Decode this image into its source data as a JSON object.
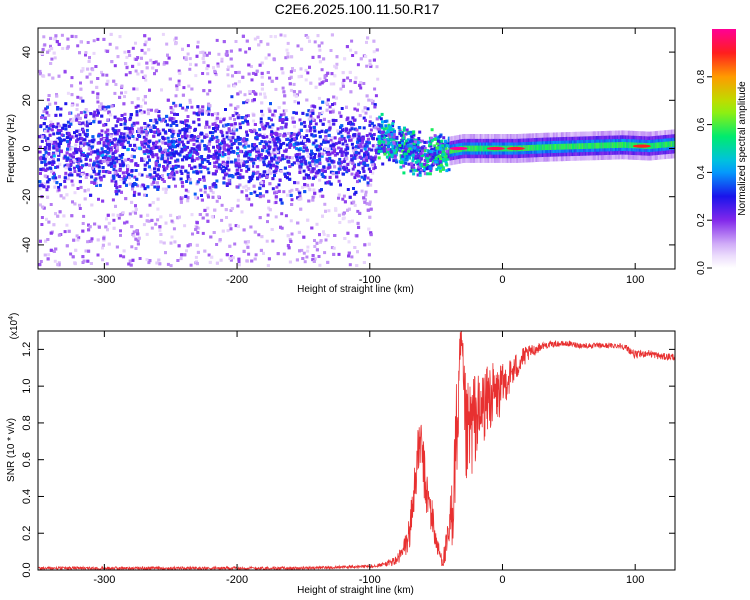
{
  "title": "C2E6.2025.100.11.50.R17",
  "chart_data": [
    {
      "type": "heatmap",
      "xlabel": "Height of straight line (km)",
      "ylabel": "Frequency (Hz)",
      "xlim": [
        -350,
        130
      ],
      "ylim": [
        -50,
        50
      ],
      "x_ticks": [
        -300,
        -200,
        -100,
        0,
        100
      ],
      "y_ticks": [
        -40,
        -20,
        0,
        20,
        40
      ],
      "colorbar": {
        "label": "Normalized spectral amplitude",
        "range": [
          0.0,
          1.0
        ],
        "ticks": [
          0.0,
          0.2,
          0.4,
          0.6,
          0.8
        ]
      },
      "regions": [
        {
          "x_range": [
            -350,
            -95
          ],
          "description_level": 0.15,
          "spread_hz": 48,
          "core_hz": 10
        },
        {
          "x_range": [
            -95,
            -40
          ],
          "description_level": 0.45,
          "spread_hz": 10,
          "core_hz": 5
        },
        {
          "x_range": [
            -40,
            130
          ],
          "description_level": 0.55,
          "spread_hz": 2,
          "core_hz": 2
        }
      ],
      "ridge": [
        {
          "x": -90,
          "y": 4
        },
        {
          "x": -80,
          "y": 2
        },
        {
          "x": -70,
          "y": 1
        },
        {
          "x": -60,
          "y": -4
        },
        {
          "x": -50,
          "y": -1
        },
        {
          "x": -40,
          "y": -1
        },
        {
          "x": -30,
          "y": 0
        },
        {
          "x": -10,
          "y": 0
        },
        {
          "x": 0,
          "y": 0
        },
        {
          "x": 10,
          "y": 0
        },
        {
          "x": 30,
          "y": 0.5
        },
        {
          "x": 60,
          "y": 1
        },
        {
          "x": 90,
          "y": 1.5
        },
        {
          "x": 110,
          "y": 1
        },
        {
          "x": 130,
          "y": 2
        }
      ],
      "peaks": [
        {
          "x": -33,
          "y": 0,
          "value": 1.0
        },
        {
          "x": -5,
          "y": 0,
          "value": 0.95
        },
        {
          "x": 10,
          "y": 0,
          "value": 0.92
        },
        {
          "x": 105,
          "y": 1,
          "value": 0.9
        }
      ]
    },
    {
      "type": "line",
      "xlabel": "Height of straight line (km)",
      "ylabel": "SNR (10 * v/v)",
      "y_multiplier": "(x10",
      "y_multiplier_exp": "4",
      "y_multiplier_close": ")",
      "xlim": [
        -350,
        130
      ],
      "ylim": [
        0.0,
        1.3
      ],
      "x_ticks": [
        -300,
        -200,
        -100,
        0,
        100
      ],
      "y_ticks": [
        "0.0",
        "0.2",
        "0.4",
        "0.6",
        "0.8",
        "1.0",
        "1.2"
      ],
      "color": "#e83030",
      "series": [
        {
          "x": [
            -350,
            -300,
            -250,
            -200,
            -150,
            -100,
            -90,
            -80,
            -75,
            -70,
            -67,
            -65,
            -62,
            -60,
            -58,
            -55,
            -52,
            -50,
            -47,
            -45,
            -42,
            -40,
            -37,
            -35,
            -33,
            -31,
            -29,
            -27,
            -25,
            -22,
            -20,
            -17,
            -15,
            -12,
            -10,
            -7,
            -5,
            -2,
            0,
            5,
            10,
            15,
            20,
            25,
            30,
            40,
            50,
            60,
            70,
            80,
            90,
            95,
            100,
            110,
            120,
            130
          ],
          "y": [
            0.01,
            0.01,
            0.01,
            0.01,
            0.01,
            0.02,
            0.03,
            0.05,
            0.1,
            0.2,
            0.4,
            0.55,
            0.7,
            0.6,
            0.45,
            0.35,
            0.25,
            0.15,
            0.08,
            0.05,
            0.12,
            0.2,
            0.4,
            0.7,
            0.9,
            1.28,
            0.85,
            0.7,
            0.75,
            0.8,
            0.85,
            0.8,
            0.9,
            0.9,
            0.95,
            0.95,
            0.95,
            0.97,
            1.0,
            1.05,
            1.1,
            1.15,
            1.18,
            1.2,
            1.22,
            1.23,
            1.23,
            1.22,
            1.22,
            1.22,
            1.22,
            1.2,
            1.17,
            1.18,
            1.16,
            1.16
          ],
          "noise": [
            0.005,
            0.005,
            0.005,
            0.005,
            0.005,
            0.01,
            0.01,
            0.03,
            0.05,
            0.1,
            0.15,
            0.15,
            0.15,
            0.15,
            0.15,
            0.12,
            0.1,
            0.06,
            0.04,
            0.04,
            0.1,
            0.15,
            0.25,
            0.3,
            0.3,
            0.1,
            0.3,
            0.3,
            0.3,
            0.28,
            0.25,
            0.25,
            0.2,
            0.2,
            0.2,
            0.18,
            0.15,
            0.15,
            0.12,
            0.1,
            0.08,
            0.06,
            0.04,
            0.03,
            0.02,
            0.015,
            0.015,
            0.015,
            0.015,
            0.015,
            0.015,
            0.02,
            0.02,
            0.02,
            0.02,
            0.02
          ]
        }
      ]
    }
  ]
}
